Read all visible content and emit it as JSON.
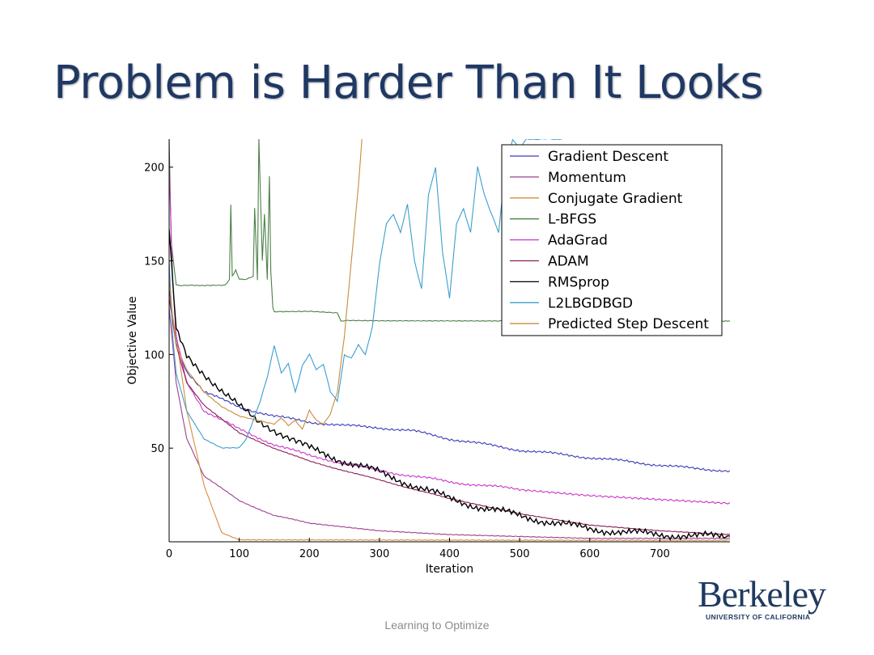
{
  "slide": {
    "title": "Problem is Harder Than It Looks",
    "footer": "Learning to Optimize"
  },
  "logo": {
    "word": "Berkeley",
    "sub": "UNIVERSITY OF CALIFORNIA"
  },
  "chart_data": {
    "type": "line",
    "title": "",
    "xlabel": "Iteration",
    "ylabel": "Objective Value",
    "xlim": [
      0,
      800
    ],
    "ylim": [
      0,
      215
    ],
    "xticks": [
      0,
      100,
      200,
      300,
      400,
      500,
      600,
      700
    ],
    "yticks": [
      50,
      100,
      150,
      200
    ],
    "grid": false,
    "legend_position": "top-right",
    "series": [
      {
        "name": "Gradient Descent",
        "color": "#3a3ab8",
        "x": [
          0,
          10,
          25,
          50,
          100,
          150,
          200,
          250,
          300,
          350,
          400,
          450,
          500,
          550,
          600,
          650,
          700,
          750,
          800
        ],
        "y": [
          135,
          105,
          90,
          80,
          72,
          67,
          64,
          62,
          61,
          59,
          55,
          52,
          49,
          47,
          45,
          43,
          41,
          39,
          38
        ]
      },
      {
        "name": "Momentum",
        "color": "#9e3f8f",
        "x": [
          0,
          10,
          25,
          50,
          100,
          150,
          200,
          300,
          400,
          500,
          600,
          700,
          800
        ],
        "y": [
          125,
          85,
          55,
          35,
          22,
          14,
          10,
          6,
          4,
          3,
          2,
          2,
          2
        ]
      },
      {
        "name": "Conjugate Gradient",
        "color": "#d58e3a",
        "x": [
          0,
          10,
          25,
          50,
          75,
          100,
          200,
          300,
          400,
          500,
          600,
          700,
          800
        ],
        "y": [
          130,
          110,
          70,
          30,
          5,
          1,
          1,
          1,
          1,
          1,
          1,
          1,
          1
        ]
      },
      {
        "name": "L-BFGS",
        "color": "#4b8046",
        "x": [
          0,
          3,
          10,
          20,
          30,
          50,
          80,
          86,
          88,
          90,
          95,
          100,
          110,
          120,
          122,
          126,
          128,
          133,
          136,
          140,
          143,
          145,
          148,
          150,
          160,
          200,
          240,
          245,
          255,
          300,
          400,
          500,
          600,
          700,
          800
        ],
        "y": [
          215,
          160,
          137,
          137,
          137,
          137,
          137,
          140,
          180,
          142,
          145,
          140,
          140,
          142,
          178,
          140,
          215,
          150,
          175,
          140,
          195,
          145,
          125,
          123,
          123,
          123,
          122,
          118,
          118,
          118,
          118,
          118,
          118,
          118,
          118
        ]
      },
      {
        "name": "AdaGrad",
        "color": "#cc33cc",
        "x": [
          0,
          5,
          10,
          25,
          50,
          100,
          150,
          200,
          250,
          300,
          350,
          400,
          450,
          500,
          600,
          700,
          800
        ],
        "y": [
          200,
          140,
          110,
          85,
          70,
          60,
          52,
          46,
          42,
          38,
          35,
          32,
          30,
          28,
          25,
          23,
          21
        ]
      },
      {
        "name": "ADAM",
        "color": "#8b1e56",
        "x": [
          0,
          10,
          25,
          50,
          100,
          150,
          200,
          250,
          300,
          350,
          400,
          500,
          600,
          700,
          800
        ],
        "y": [
          130,
          105,
          85,
          73,
          58,
          50,
          43,
          38,
          33,
          28,
          23,
          15,
          9,
          6,
          4
        ]
      },
      {
        "name": "RMSprop",
        "color": "#000000",
        "x": [
          0,
          10,
          25,
          50,
          75,
          100,
          125,
          150,
          175,
          200,
          250,
          300,
          350,
          400,
          450,
          500,
          550,
          600,
          650,
          700,
          750,
          800
        ],
        "y": [
          165,
          115,
          100,
          90,
          80,
          72,
          65,
          60,
          55,
          50,
          43,
          37,
          30,
          23,
          18,
          14,
          10,
          7,
          5,
          4,
          3,
          3
        ]
      },
      {
        "name": "L2LBGDBGD",
        "color": "#3a9fcf",
        "x": [
          0,
          5,
          10,
          25,
          50,
          75,
          100,
          110,
          120,
          130,
          140,
          150,
          160,
          170,
          180,
          190,
          200,
          210,
          220,
          230,
          240,
          250,
          260,
          270,
          280,
          290,
          300,
          310,
          320,
          330,
          340,
          350,
          360,
          370,
          380,
          390,
          400,
          410,
          420,
          430,
          440,
          450,
          460,
          470,
          480,
          490,
          500,
          510,
          520,
          530,
          540,
          550,
          560
        ],
        "y": [
          150,
          110,
          90,
          70,
          55,
          50,
          50,
          55,
          65,
          75,
          88,
          105,
          90,
          95,
          80,
          94,
          100,
          92,
          95,
          80,
          75,
          100,
          98,
          105,
          100,
          115,
          148,
          170,
          175,
          165,
          180,
          150,
          135,
          185,
          200,
          155,
          130,
          170,
          178,
          165,
          200,
          185,
          175,
          165,
          200,
          215,
          210,
          215,
          215,
          215,
          215,
          215,
          215
        ]
      },
      {
        "name": "Predicted Step Descent",
        "color": "#c98b3c",
        "x": [
          0,
          5,
          10,
          25,
          50,
          75,
          100,
          125,
          150,
          160,
          170,
          180,
          190,
          200,
          210,
          220,
          230,
          240,
          245,
          250,
          255,
          260,
          270,
          275
        ],
        "y": [
          140,
          120,
          105,
          92,
          80,
          72,
          67,
          65,
          63,
          66,
          62,
          65,
          60,
          70,
          65,
          63,
          68,
          80,
          95,
          110,
          130,
          150,
          190,
          215
        ]
      }
    ]
  }
}
